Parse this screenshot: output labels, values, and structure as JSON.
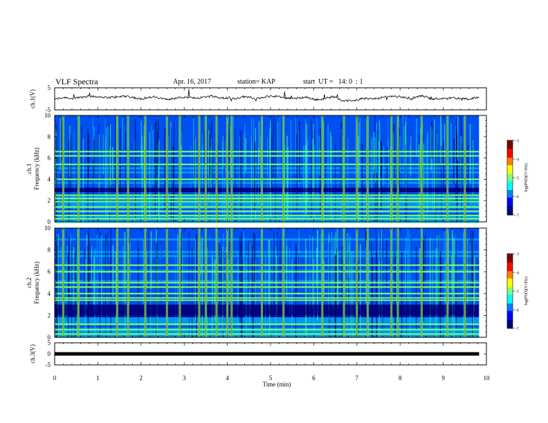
{
  "header": {
    "title": "VLF Spectra",
    "date": "Apr. 16, 2017",
    "station": "station= KAP",
    "start_ut": "start  UT =   14: 0  : 1"
  },
  "colors": {
    "scale": [
      "#00007f",
      "#0000ff",
      "#0080ff",
      "#00ffff",
      "#80ff80",
      "#ffff00",
      "#ff8000",
      "#ff0000",
      "#7f0000"
    ],
    "axis": "#000000",
    "waveform": "#000000"
  },
  "chart_data": [
    {
      "type": "line",
      "panel": "ch1-waveform",
      "ylabel": "ch.1(V)",
      "ylim": [
        -5,
        5
      ],
      "yticks": [
        "5",
        "-5"
      ],
      "xlim": [
        0,
        10
      ],
      "series": [
        {
          "values_approx": "noisy waveform around -0.5 V, amplitude about ±1.5 V"
        }
      ]
    },
    {
      "type": "heatmap",
      "panel": "ch1-spectrogram",
      "ylabel": "ch.1\nFrequency (kHz)",
      "ylabel_line1": "ch.1",
      "ylabel_line2": "Frequency (kHz)",
      "ylim": [
        0,
        10
      ],
      "yticks": [
        "0",
        "2",
        "4",
        "6",
        "8",
        "10"
      ],
      "xlim": [
        0,
        10
      ],
      "colorbar": {
        "label": "log(PSD)(V²/Hz)",
        "ticks": [
          "-3",
          "-4",
          "-5",
          "-6",
          "-7"
        ],
        "range": [
          -7,
          -3
        ]
      },
      "bands_khz": [
        0.3,
        0.6,
        1.0,
        1.4,
        1.9,
        2.2,
        2.5,
        4.0,
        5.4,
        6.2,
        6.6
      ],
      "quiet_band_khz": [
        2.8,
        3.2
      ],
      "spike_times_min": [
        0.2,
        0.55,
        1.45,
        1.7,
        2.1,
        2.6,
        2.9,
        3.35,
        3.5,
        3.75,
        4.0,
        4.1,
        4.8,
        5.3,
        6.2,
        6.7,
        7.0,
        7.25,
        7.8,
        7.95,
        8.5,
        9.1,
        9.5
      ]
    },
    {
      "type": "heatmap",
      "panel": "ch2-spectrogram",
      "ylabel": "ch.2\nFrequency (kHz)",
      "ylabel_line1": "ch.2",
      "ylabel_line2": "Frequency (kHz)",
      "ylim": [
        0,
        10
      ],
      "yticks": [
        "0",
        "2",
        "4",
        "6",
        "8",
        "10"
      ],
      "xlim": [
        0,
        10
      ],
      "colorbar": {
        "label": "log(PSD)(V²/Hz)",
        "ticks": [
          "-3",
          "-4",
          "-5",
          "-6",
          "-7"
        ],
        "range": [
          -7,
          -3
        ]
      },
      "bands_khz": [
        0.3,
        0.7,
        1.2,
        3.4,
        3.6,
        4.0,
        4.6,
        5.0,
        6.0,
        6.6
      ],
      "quiet_band_khz": [
        2.0,
        3.0
      ],
      "spike_times_min": [
        0.2,
        0.55,
        1.45,
        1.7,
        2.1,
        2.6,
        2.9,
        3.35,
        3.5,
        3.75,
        4.0,
        4.1,
        4.8,
        5.3,
        6.2,
        6.7,
        7.0,
        7.25,
        7.8,
        7.95,
        8.5,
        9.1,
        9.5
      ]
    },
    {
      "type": "line",
      "panel": "ch3-waveform",
      "ylabel": "ch.3(V)",
      "ylim": [
        -5,
        5
      ],
      "yticks": [
        "5",
        "0",
        "-5"
      ],
      "xlim": [
        0,
        10
      ],
      "xlabel": "Time (min)",
      "xticks": [
        "0",
        "1",
        "2",
        "3",
        "4",
        "5",
        "6",
        "7",
        "8",
        "9",
        "10"
      ],
      "series": [
        {
          "values_approx": "flat line near 0 V"
        }
      ]
    }
  ]
}
